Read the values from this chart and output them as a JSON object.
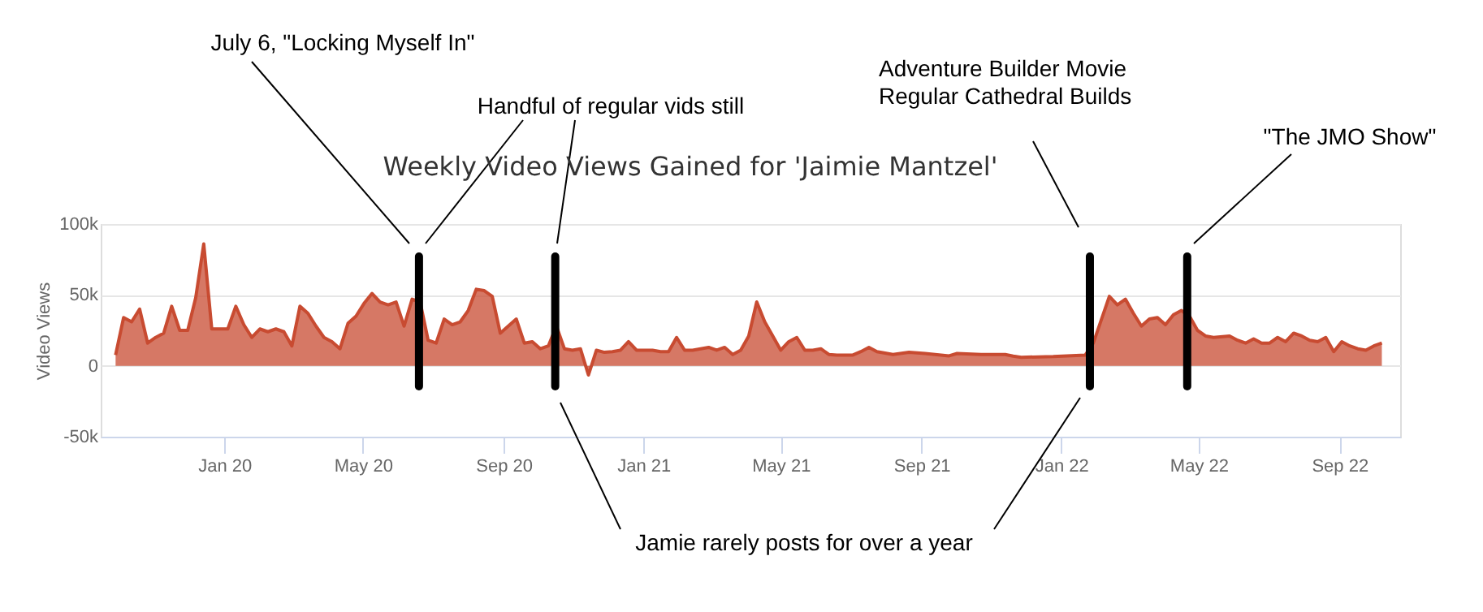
{
  "chart_data": {
    "type": "area",
    "title": "Weekly Video Views Gained for 'Jaimie Mantzel'",
    "ylabel": "Video Views",
    "x": [
      "2019-09-28",
      "2019-10-05",
      "2019-10-12",
      "2019-10-19",
      "2019-10-26",
      "2019-11-02",
      "2019-11-09",
      "2019-11-16",
      "2019-11-23",
      "2019-11-30",
      "2019-12-07",
      "2019-12-14",
      "2019-12-21",
      "2019-12-28",
      "2020-01-04",
      "2020-01-11",
      "2020-01-18",
      "2020-01-25",
      "2020-02-01",
      "2020-02-08",
      "2020-02-15",
      "2020-02-22",
      "2020-02-29",
      "2020-03-07",
      "2020-03-14",
      "2020-03-21",
      "2020-03-28",
      "2020-04-04",
      "2020-04-11",
      "2020-04-18",
      "2020-04-25",
      "2020-05-02",
      "2020-05-09",
      "2020-05-16",
      "2020-05-23",
      "2020-05-30",
      "2020-06-06",
      "2020-06-13",
      "2020-06-20",
      "2020-06-27",
      "2020-07-04",
      "2020-07-11",
      "2020-07-18",
      "2020-07-25",
      "2020-08-01",
      "2020-08-08",
      "2020-08-15",
      "2020-08-22",
      "2020-08-29",
      "2020-09-05",
      "2020-09-12",
      "2020-09-19",
      "2020-09-26",
      "2020-10-03",
      "2020-10-10",
      "2020-10-17",
      "2020-10-24",
      "2020-10-31",
      "2020-11-07",
      "2020-11-14",
      "2020-11-21",
      "2020-11-28",
      "2020-12-05",
      "2020-12-12",
      "2020-12-19",
      "2020-12-26",
      "2021-01-02",
      "2021-01-09",
      "2021-01-16",
      "2021-01-23",
      "2021-01-30",
      "2021-02-06",
      "2021-02-13",
      "2021-02-20",
      "2021-02-27",
      "2021-03-06",
      "2021-03-13",
      "2021-03-20",
      "2021-03-27",
      "2021-04-03",
      "2021-04-10",
      "2021-04-17",
      "2021-04-24",
      "2021-05-01",
      "2021-05-08",
      "2021-05-15",
      "2021-05-22",
      "2021-05-29",
      "2021-06-05",
      "2021-06-12",
      "2021-06-19",
      "2021-07-03",
      "2021-07-10",
      "2021-07-17",
      "2021-07-24",
      "2021-08-07",
      "2021-08-21",
      "2021-09-04",
      "2021-09-25",
      "2021-10-02",
      "2021-10-23",
      "2021-11-06",
      "2021-11-13",
      "2021-11-20",
      "2021-11-27",
      "2021-12-25",
      "2022-01-22",
      "2022-01-29",
      "2022-02-12",
      "2022-02-19",
      "2022-02-26",
      "2022-03-05",
      "2022-03-12",
      "2022-03-19",
      "2022-03-26",
      "2022-04-02",
      "2022-04-09",
      "2022-04-16",
      "2022-04-23",
      "2022-04-30",
      "2022-05-07",
      "2022-05-14",
      "2022-05-28",
      "2022-06-04",
      "2022-06-11",
      "2022-06-18",
      "2022-06-25",
      "2022-07-02",
      "2022-07-09",
      "2022-07-16",
      "2022-07-23",
      "2022-07-30",
      "2022-08-06",
      "2022-08-13",
      "2022-08-20",
      "2022-08-27",
      "2022-09-03",
      "2022-09-10",
      "2022-09-17",
      "2022-09-24",
      "2022-10-01",
      "2022-10-08"
    ],
    "series": [
      {
        "color": "#c84b31",
        "values": [
          7600,
          34000,
          31000,
          40000,
          16000,
          20000,
          23000,
          42000,
          25000,
          25000,
          48000,
          86000,
          26000,
          26000,
          26000,
          42000,
          29000,
          20000,
          26000,
          24000,
          26000,
          24000,
          14000,
          42000,
          37000,
          28000,
          20000,
          17000,
          12000,
          30000,
          35000,
          44000,
          51000,
          45000,
          43000,
          45000,
          28000,
          47000,
          45000,
          18000,
          16000,
          33000,
          29000,
          31000,
          39000,
          54000,
          53000,
          49000,
          23000,
          28000,
          33000,
          16000,
          17000,
          12000,
          14000,
          28000,
          12000,
          11000,
          12000,
          -6500,
          11000,
          9500,
          10000,
          11000,
          17000,
          11000,
          11000,
          11000,
          10000,
          10000,
          20000,
          11000,
          11000,
          12000,
          13000,
          11000,
          13000,
          8000,
          11000,
          21000,
          45000,
          31000,
          21000,
          11000,
          17000,
          20000,
          11000,
          11000,
          12000,
          8000,
          7600,
          7600,
          10000,
          13000,
          10000,
          8000,
          9500,
          8700,
          7000,
          8700,
          8000,
          8000,
          8000,
          6800,
          6000,
          6500,
          7600,
          16000,
          49000,
          43000,
          47000,
          37000,
          28000,
          33000,
          34000,
          29000,
          36000,
          39000,
          35000,
          25000,
          21000,
          20000,
          21000,
          18000,
          16000,
          19000,
          16000,
          16000,
          20000,
          17000,
          23000,
          21000,
          18000,
          17000,
          20000,
          10000,
          17000,
          14000,
          12000,
          11000,
          14000,
          16000
        ]
      }
    ],
    "xlim": [
      "2019-09-15",
      "2022-10-24"
    ],
    "xticks": [
      {
        "value": "2020-01-01",
        "label": "Jan 20"
      },
      {
        "value": "2020-05-01",
        "label": "May 20"
      },
      {
        "value": "2020-09-01",
        "label": "Sep 20"
      },
      {
        "value": "2021-01-01",
        "label": "Jan 21"
      },
      {
        "value": "2021-05-01",
        "label": "May 21"
      },
      {
        "value": "2021-09-01",
        "label": "Sep 21"
      },
      {
        "value": "2022-01-01",
        "label": "Jan 22"
      },
      {
        "value": "2022-05-01",
        "label": "May 22"
      },
      {
        "value": "2022-09-01",
        "label": "Sep 22"
      }
    ],
    "ylim": [
      -50000,
      100000
    ],
    "yticks": [
      {
        "value": -50000,
        "label": "-50k"
      },
      {
        "value": 0,
        "label": "0"
      },
      {
        "value": 50000,
        "label": "50k"
      },
      {
        "value": 100000,
        "label": "100k"
      }
    ],
    "grid": "y",
    "ref_lines": [
      {
        "axis": "x",
        "value": "2020-06-19",
        "color": "#000000"
      },
      {
        "axis": "x",
        "value": "2020-10-16",
        "color": "#000000"
      },
      {
        "axis": "x",
        "value": "2022-01-26",
        "color": "#000000"
      },
      {
        "axis": "x",
        "value": "2022-04-21",
        "color": "#000000"
      }
    ],
    "annotations": [
      "July 6, \"Locking Myself In\"",
      "Handful of regular vids still",
      "Adventure Builder Movie\nRegular Cathedral Builds",
      "\"The JMO Show\"",
      "Jamie rarely posts for over a year"
    ]
  }
}
